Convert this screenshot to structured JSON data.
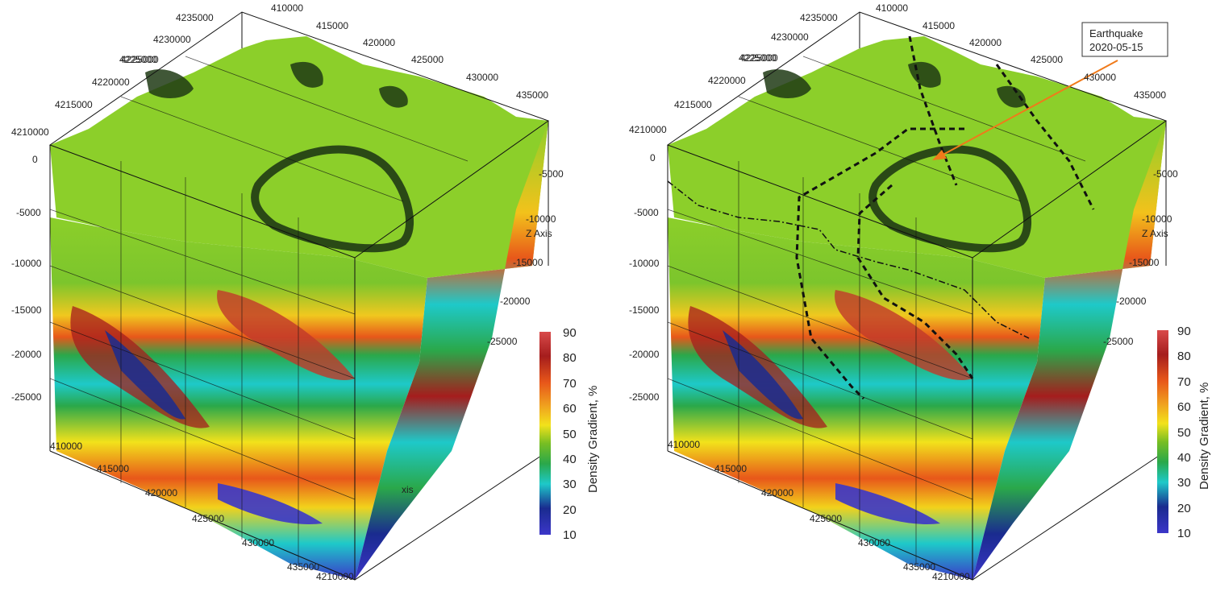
{
  "colorbar": {
    "title": "Density Gradient, %",
    "ticks": [
      "90",
      "80",
      "70",
      "60",
      "50",
      "40",
      "30",
      "20",
      "10"
    ],
    "stops": [
      "#d94a4a",
      "#a51d1d",
      "#e8571a",
      "#f0a51f",
      "#f2e21b",
      "#78be23",
      "#2aa84a",
      "#1ec9c9",
      "#1a2b8f",
      "#3b36c9"
    ]
  },
  "axes": {
    "z_axis_label": "Z Axis",
    "x_axis_partial": "xis",
    "back_y_ticks": [
      "4235000",
      "4230000",
      "4225000",
      "4220000",
      "4215000",
      "4210000"
    ],
    "overlap_label": "4225000",
    "top_x_ticks": [
      "410000",
      "415000",
      "420000",
      "425000",
      "430000",
      "435000"
    ],
    "front_z_ticks": [
      "0",
      "-5000",
      "-10000",
      "-15000",
      "-20000",
      "-25000"
    ],
    "right_z_ticks": [
      "-5000",
      "-10000",
      "-15000",
      "-20000",
      "-25000"
    ],
    "bottom_x_ticks": [
      "410000",
      "415000",
      "420000",
      "425000",
      "430000",
      "435000"
    ],
    "bottom_y_tick": "4210000"
  },
  "annotation": {
    "line1": "Earthquake",
    "line2": "2020-05-15",
    "arrow_color": "#f07a1a"
  },
  "colors": {
    "surface_green": "#8ccf2a",
    "dark_rim": "#1f3a14"
  }
}
